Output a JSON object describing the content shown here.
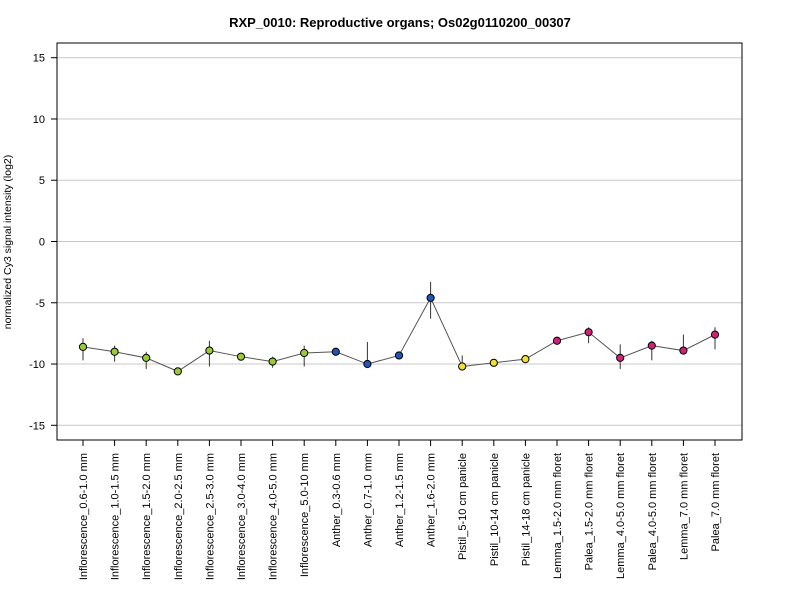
{
  "chart_data": {
    "type": "line",
    "title": "RXP_0010: Reproductive organs; Os02g0110200_00307",
    "xlabel": "",
    "ylabel": "normalized Cy3 signal intensity (log2)",
    "ylim": [
      -16.2,
      16.2
    ],
    "yticks": [
      15,
      10,
      5,
      0,
      -5,
      -10,
      -15
    ],
    "ytick_labels": [
      "15",
      "10",
      "5",
      "0",
      "-5",
      "-10",
      "-15"
    ],
    "grid": true,
    "legend": "none",
    "line_color": "#555555",
    "categories": [
      "Inflorescence_0.6-1.0 mm",
      "Inflorescence_1.0-1.5 mm",
      "Inflorescence_1.5-2.0 mm",
      "Inflorescence_2.0-2.5 mm",
      "Inflorescence_2.5-3.0 mm",
      "Inflorescence_3.0-4.0 mm",
      "Inflorescence_4.0-5.0 mm",
      "Inflorescence_5.0-10 mm",
      "Anther_0.3-0.6 mm",
      "Anther_0.7-1.0 mm",
      "Anther_1.2-1.5 mm",
      "Anther_1.6-2.0 mm",
      "Pistil_5-10 cm panicle",
      "Pistil_10-14 cm panicle",
      "Pistil_14-18 cm panicle",
      "Lemma_1.5-2.0 mm floret",
      "Palea_1.5-2.0 mm floret",
      "Lemma_4.0-5.0 mm floret",
      "Palea_4.0-5.0 mm floret",
      "Lemma_7.0 mm floret",
      "Palea_7.0 mm floret"
    ],
    "values": [
      -8.6,
      -9.0,
      -9.5,
      -10.6,
      -8.9,
      -9.4,
      -9.8,
      -9.1,
      -9.0,
      -10.0,
      -9.3,
      -4.6,
      -10.2,
      -9.9,
      -9.6,
      -8.1,
      -7.4,
      -9.5,
      -8.5,
      -8.9,
      -7.6
    ],
    "error_low": [
      -9.7,
      -9.8,
      -10.4,
      -10.8,
      -10.2,
      -9.6,
      -10.3,
      -10.2,
      -9.3,
      -10.2,
      -9.5,
      -6.3,
      -10.5,
      -10.2,
      -9.9,
      -8.3,
      -8.3,
      -10.4,
      -9.7,
      -9.0,
      -8.8
    ],
    "error_high": [
      -7.9,
      -8.5,
      -9.0,
      -10.4,
      -8.1,
      -9.2,
      -9.4,
      -8.5,
      -8.8,
      -8.2,
      -9.1,
      -3.3,
      -9.3,
      -9.7,
      -9.5,
      -7.9,
      -7.0,
      -8.4,
      -8.1,
      -7.6,
      -7.0
    ],
    "point_colors": [
      "#99cc33",
      "#99cc33",
      "#99cc33",
      "#99cc33",
      "#99cc33",
      "#99cc33",
      "#99cc33",
      "#99cc33",
      "#2255bb",
      "#2255bb",
      "#2255bb",
      "#2255bb",
      "#f2e033",
      "#f2e033",
      "#f2e033",
      "#cc2277",
      "#cc2277",
      "#cc2277",
      "#cc2277",
      "#cc2277",
      "#cc2277"
    ]
  }
}
